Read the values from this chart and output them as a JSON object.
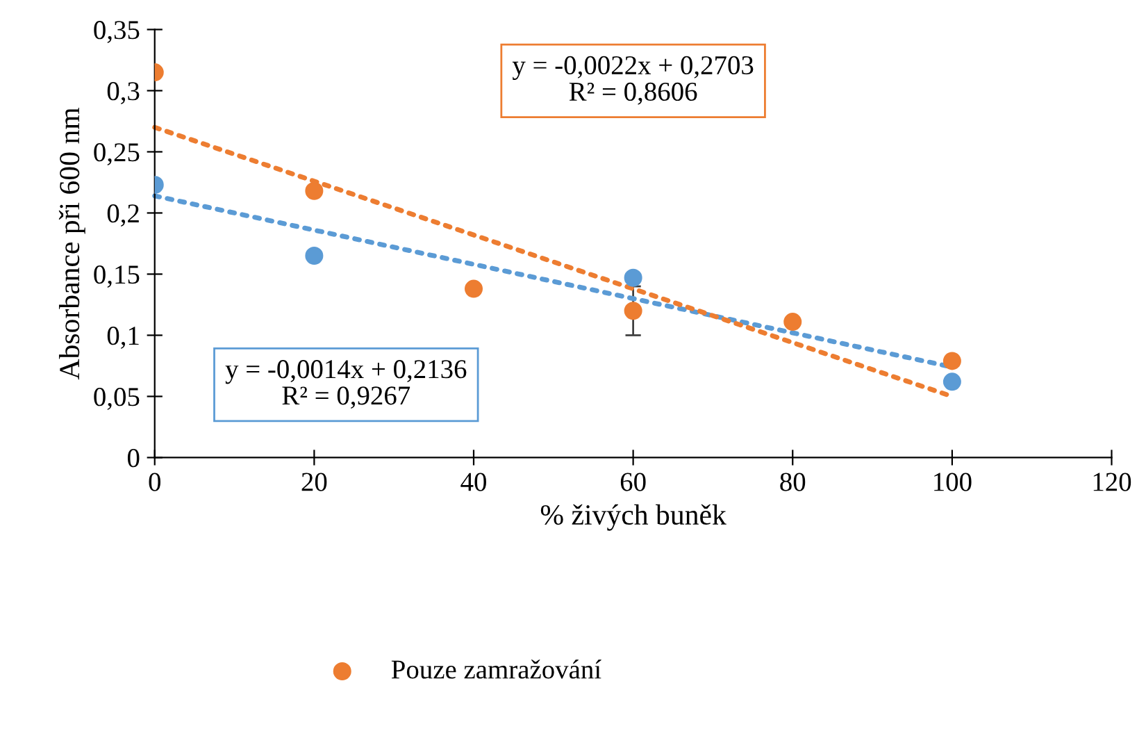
{
  "chart_data": {
    "type": "scatter",
    "xlabel": "% živých buněk",
    "ylabel": "Absorbance při 600 nm",
    "x": [
      0,
      20,
      40,
      60,
      80,
      100
    ],
    "series": [
      {
        "color": "#5b9bd5",
        "values": [
          0.223,
          0.165,
          null,
          0.147,
          null,
          0.062
        ]
      },
      {
        "name": "Pouze zamražování",
        "color": "#ed7d31",
        "values": [
          0.315,
          0.218,
          0.138,
          0.12,
          0.111,
          0.079
        ],
        "errors": [
          null,
          null,
          null,
          0.02,
          null,
          null
        ]
      },
      {
        "type": "line",
        "color": "#5b9bd5",
        "values": [
          0.214,
          null,
          null,
          null,
          null,
          0.074
        ],
        "line_style": "dotted",
        "marker": "none"
      },
      {
        "type": "line",
        "color": "#ed7d31",
        "values": [
          0.27,
          null,
          null,
          null,
          null,
          0.05
        ],
        "line_style": "dotted",
        "marker": "none"
      }
    ],
    "annotations": [
      "y = -0,0022x + 0,2703\nR² = 0,8606",
      "y = -0,0014x + 0,2136\nR² = 0,9267"
    ],
    "xlim": [
      0,
      120
    ],
    "xticks": [
      0,
      20,
      40,
      60,
      80,
      100,
      120
    ],
    "ylim": [
      0,
      0.35
    ],
    "yticks": [
      0,
      {
        "value": 0.05,
        "label": "0,05"
      },
      {
        "value": 0.1,
        "label": "0,1"
      },
      {
        "value": 0.15,
        "label": "0,15"
      },
      {
        "value": 0.2,
        "label": "0,2"
      },
      {
        "value": 0.25,
        "label": "0,25"
      },
      {
        "value": 0.3,
        "label": "0,3"
      },
      {
        "value": 0.35,
        "label": "0,35"
      }
    ],
    "grid": false,
    "legend": "bottom",
    "marker": "circle"
  }
}
